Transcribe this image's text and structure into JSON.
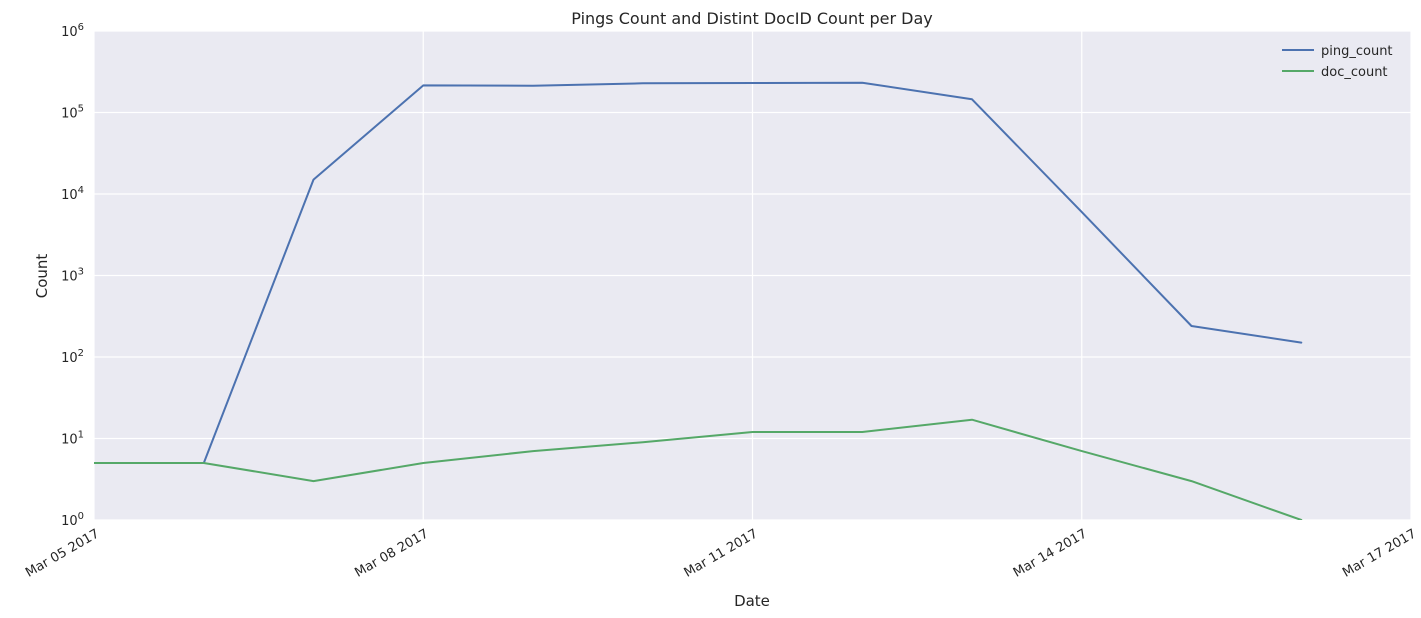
{
  "chart_data": {
    "type": "line",
    "title": "Pings Count and Distint DocID Count per Day",
    "xlabel": "Date",
    "ylabel": "Count",
    "y_scale": "log",
    "ylim": [
      1,
      1000000
    ],
    "xlim": [
      "2017-03-05",
      "2017-03-17"
    ],
    "grid": true,
    "legend_position": "top-right",
    "x_ticks": [
      {
        "date": "2017-03-05",
        "label": "Mar 05 2017"
      },
      {
        "date": "2017-03-08",
        "label": "Mar 08 2017"
      },
      {
        "date": "2017-03-11",
        "label": "Mar 11 2017"
      },
      {
        "date": "2017-03-14",
        "label": "Mar 14 2017"
      },
      {
        "date": "2017-03-17",
        "label": "Mar 17 2017"
      }
    ],
    "y_ticks": [
      {
        "value": 1,
        "base": "10",
        "exp": "0"
      },
      {
        "value": 10,
        "base": "10",
        "exp": "1"
      },
      {
        "value": 100,
        "base": "10",
        "exp": "2"
      },
      {
        "value": 1000,
        "base": "10",
        "exp": "3"
      },
      {
        "value": 10000,
        "base": "10",
        "exp": "4"
      },
      {
        "value": 100000,
        "base": "10",
        "exp": "5"
      },
      {
        "value": 1000000,
        "base": "10",
        "exp": "6"
      }
    ],
    "x": [
      "2017-03-05",
      "2017-03-06",
      "2017-03-07",
      "2017-03-08",
      "2017-03-09",
      "2017-03-10",
      "2017-03-11",
      "2017-03-12",
      "2017-03-13",
      "2017-03-14",
      "2017-03-15",
      "2017-03-16"
    ],
    "series": [
      {
        "name": "ping_count",
        "color": "#4c72b0",
        "values": [
          5,
          5,
          15000,
          215000,
          213000,
          228000,
          230000,
          232000,
          145000,
          6000,
          240,
          150
        ]
      },
      {
        "name": "doc_count",
        "color": "#55a868",
        "values": [
          5,
          5,
          3,
          5,
          7,
          9,
          12,
          12,
          17,
          7,
          3,
          1
        ]
      }
    ]
  }
}
